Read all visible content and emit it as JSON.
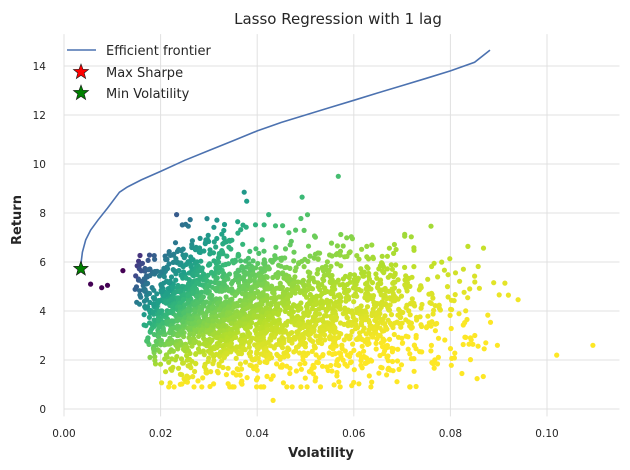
{
  "chart_data": {
    "type": "scatter",
    "title": "Lasso Regression with 1 lag",
    "xlabel": "Volatility",
    "ylabel": "Return",
    "xlim": [
      0.0,
      0.115
    ],
    "ylim": [
      -0.3,
      15.3
    ],
    "x_ticks": [
      "0.00",
      "0.02",
      "0.04",
      "0.06",
      "0.08",
      "0.10"
    ],
    "x_tick_values": [
      0.0,
      0.02,
      0.04,
      0.06,
      0.08,
      0.1
    ],
    "y_ticks": [
      "0",
      "2",
      "4",
      "6",
      "8",
      "10",
      "12",
      "14"
    ],
    "y_tick_values": [
      0,
      2,
      4,
      6,
      8,
      10,
      12,
      14
    ],
    "grid": true,
    "legend_position": "top-left",
    "colormap": "viridis",
    "colors": {
      "frontier": "#4c72b0",
      "max_sharpe": "#ff0000",
      "min_volatility": "#008000",
      "grid": "#e0e0e0"
    },
    "series": [
      {
        "name": "Efficient frontier",
        "kind": "line",
        "x": [
          0.0034,
          0.0038,
          0.0045,
          0.0055,
          0.007,
          0.009,
          0.0115,
          0.013,
          0.016,
          0.02,
          0.025,
          0.03,
          0.035,
          0.04,
          0.045,
          0.05,
          0.055,
          0.06,
          0.065,
          0.07,
          0.075,
          0.08,
          0.085,
          0.0882
        ],
        "y": [
          5.75,
          6.4,
          6.9,
          7.3,
          7.7,
          8.2,
          8.85,
          9.05,
          9.35,
          9.7,
          10.15,
          10.55,
          10.95,
          11.35,
          11.7,
          12.0,
          12.3,
          12.6,
          12.9,
          13.2,
          13.5,
          13.8,
          14.15,
          14.65
        ]
      },
      {
        "name": "Max Sharpe",
        "kind": "marker",
        "marker": "star",
        "x": [
          0.0035
        ],
        "y": [
          5.72
        ]
      },
      {
        "name": "Min Volatility",
        "kind": "marker",
        "marker": "star",
        "x": [
          0.0035
        ],
        "y": [
          5.72
        ]
      }
    ],
    "scatter_cloud": {
      "description_units": "volatility vs return; color by return/volatility ratio",
      "count": 2600,
      "x_range": [
        0.0095,
        0.11
      ],
      "y_range": [
        0.35,
        9.55
      ],
      "dense_region": {
        "x": [
          0.012,
          0.06
        ],
        "y": [
          1.2,
          7.5
        ]
      }
    },
    "scatter_outliers": {
      "x": [
        0.0055,
        0.0078,
        0.009,
        0.0122,
        0.0568,
        0.0373,
        0.0493,
        0.1095,
        0.0433,
        0.0565,
        0.102,
        0.092
      ],
      "y": [
        5.1,
        4.95,
        5.05,
        5.65,
        9.5,
        8.85,
        8.65,
        2.6,
        0.35,
        1.35,
        2.2,
        4.65
      ]
    }
  }
}
